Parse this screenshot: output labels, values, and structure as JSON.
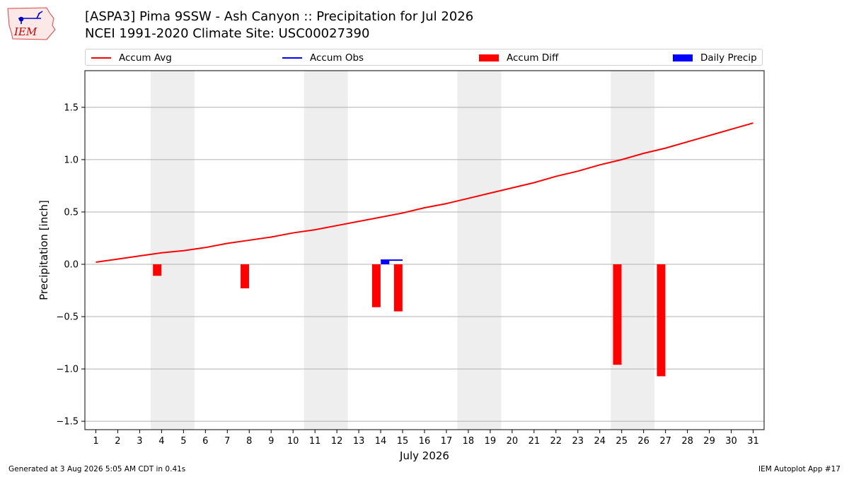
{
  "header": {
    "title_line1": "[ASPA3] Pima 9SSW - Ash Canyon :: Precipitation for Jul 2026",
    "title_line2": "NCEI 1991-2020 Climate Site: USC00027390",
    "logo_text": "IEM"
  },
  "legend": [
    {
      "label": "Accum Avg",
      "kind": "line",
      "color": "#ff0000"
    },
    {
      "label": "Accum Obs",
      "kind": "line",
      "color": "#0000ff"
    },
    {
      "label": "Accum Diff",
      "kind": "box",
      "color": "#ff0000"
    },
    {
      "label": "Daily Precip",
      "kind": "box",
      "color": "#0000ff"
    }
  ],
  "footer": {
    "left": "Generated at 3 Aug 2026 5:05 AM CDT in 0.41s",
    "right": "IEM Autoplot App #17"
  },
  "chart_data": {
    "type": "bar",
    "xlabel": "July 2026",
    "ylabel": "Precipitation [inch]",
    "xlim": [
      0.5,
      31.5
    ],
    "ylim": [
      -1.58,
      1.85
    ],
    "x_ticks": [
      1,
      2,
      3,
      4,
      5,
      6,
      7,
      8,
      9,
      10,
      11,
      12,
      13,
      14,
      15,
      16,
      17,
      18,
      19,
      20,
      21,
      22,
      23,
      24,
      25,
      26,
      27,
      28,
      29,
      30,
      31
    ],
    "y_ticks": [
      -1.5,
      -1.0,
      -0.5,
      0.0,
      0.5,
      1.0,
      1.5
    ],
    "y_tick_labels": [
      "−1.5",
      "−1.0",
      "−0.5",
      "0.0",
      "0.5",
      "1.0",
      "1.5"
    ],
    "grid": "horizontal",
    "weekend_shading": [
      [
        3.5,
        5.5
      ],
      [
        10.5,
        12.5
      ],
      [
        17.5,
        19.5
      ],
      [
        24.5,
        26.5
      ]
    ],
    "shading_color": "#eeeeee",
    "series": [
      {
        "name": "Accum Avg",
        "type": "line",
        "color": "#ff0000",
        "x": [
          1,
          2,
          3,
          4,
          5,
          6,
          7,
          8,
          9,
          10,
          11,
          12,
          13,
          14,
          15,
          16,
          17,
          18,
          19,
          20,
          21,
          22,
          23,
          24,
          25,
          26,
          27,
          28,
          29,
          30,
          31
        ],
        "values": [
          0.02,
          0.05,
          0.08,
          0.11,
          0.13,
          0.16,
          0.2,
          0.23,
          0.26,
          0.3,
          0.33,
          0.37,
          0.41,
          0.45,
          0.49,
          0.54,
          0.58,
          0.63,
          0.68,
          0.73,
          0.78,
          0.84,
          0.89,
          0.95,
          1.0,
          1.06,
          1.11,
          1.17,
          1.23,
          1.29,
          1.35
        ]
      },
      {
        "name": "Accum Obs",
        "type": "line",
        "color": "#0000ff",
        "x": [
          14,
          15
        ],
        "values": [
          0.04,
          0.04
        ]
      },
      {
        "name": "Accum Diff",
        "type": "bar",
        "color": "#ff0000",
        "x": [
          3.8,
          7.8,
          13.8,
          14.8,
          24.8,
          26.8
        ],
        "values": [
          -0.11,
          -0.23,
          -0.41,
          -0.45,
          -0.96,
          -1.07
        ]
      },
      {
        "name": "Daily Precip",
        "type": "bar",
        "color": "#0000ff",
        "x": [
          14.2
        ],
        "values": [
          0.04
        ]
      }
    ]
  }
}
